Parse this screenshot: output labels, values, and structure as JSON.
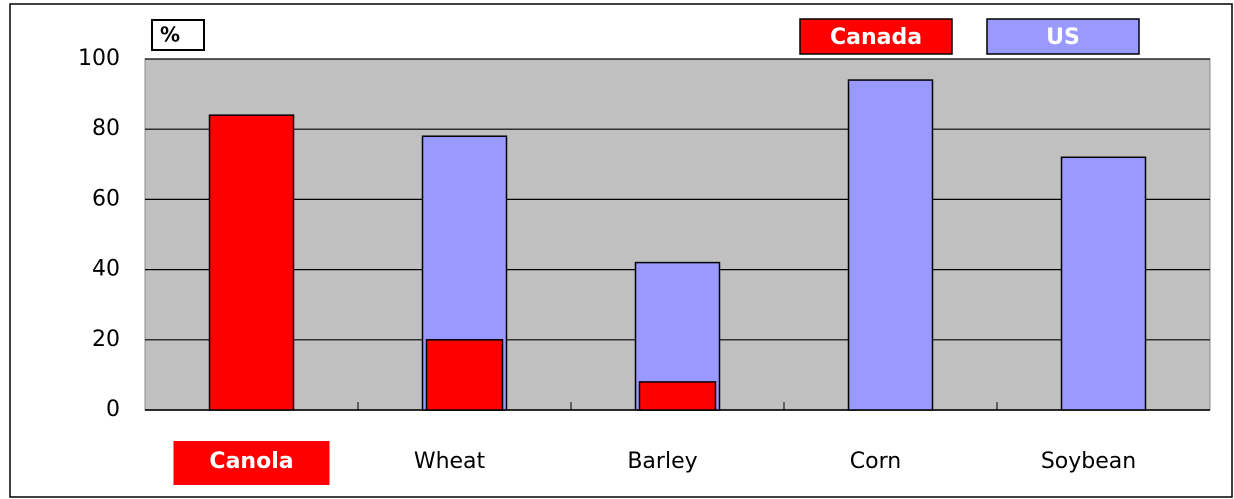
{
  "chart_data": {
    "type": "bar",
    "y_unit_label": "%",
    "categories": [
      "Canola",
      "Wheat",
      "Barley",
      "Corn",
      "Soybean"
    ],
    "series": [
      {
        "name": "US",
        "color": "#9999ff",
        "values": [
          null,
          78,
          42,
          94,
          72
        ]
      },
      {
        "name": "Canada",
        "color": "#ff0000",
        "values": [
          84,
          20,
          8,
          null,
          null
        ]
      }
    ],
    "legend_order": [
      1,
      0
    ],
    "highlight": 0,
    "ylim": [
      0,
      100
    ],
    "yticks": [
      0,
      20,
      40,
      60,
      80,
      100
    ],
    "grid": true,
    "legend": "top-right",
    "background": "#c0c0c0"
  }
}
